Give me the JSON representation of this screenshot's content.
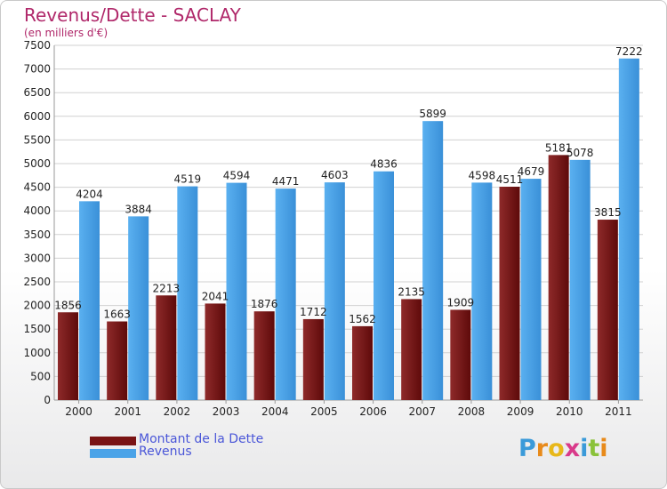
{
  "header": {
    "title": "Revenus/Dette - SACLAY",
    "subtitle": "(en milliers d'€)"
  },
  "chart_data": {
    "type": "bar",
    "categories": [
      "2000",
      "2001",
      "2002",
      "2003",
      "2004",
      "2005",
      "2006",
      "2007",
      "2008",
      "2009",
      "2010",
      "2011"
    ],
    "series": [
      {
        "name": "Montant de la Dette",
        "values": [
          1856,
          1663,
          2213,
          2041,
          1876,
          1712,
          1562,
          2135,
          1909,
          4511,
          5181,
          3815
        ],
        "color": "#7a1414"
      },
      {
        "name": "Revenus",
        "values": [
          4204,
          3884,
          4519,
          4594,
          4471,
          4603,
          4836,
          5899,
          4598,
          4679,
          5078,
          7222
        ],
        "color": "#4aa3e8"
      }
    ],
    "ylim": [
      0,
      7500
    ],
    "yticks": [
      0,
      500,
      1000,
      1500,
      2000,
      2500,
      3000,
      3500,
      4000,
      4500,
      5000,
      5500,
      6000,
      6500,
      7000,
      7500
    ],
    "grid": true,
    "legend": "bottom-left"
  },
  "legend": {
    "debt_label": "Montant de la Dette",
    "revenue_label": "Revenus",
    "debt_color": "#7a1414",
    "revenue_color": "#4aa3e8"
  },
  "logo": {
    "letters": [
      "P",
      "r",
      "o",
      "x",
      "i",
      "t",
      "i"
    ],
    "colors": [
      "#3a9ad9",
      "#e88a1a",
      "#e8b81a",
      "#d93a8a",
      "#3a9ad9",
      "#8ac23a",
      "#e88a1a"
    ]
  }
}
